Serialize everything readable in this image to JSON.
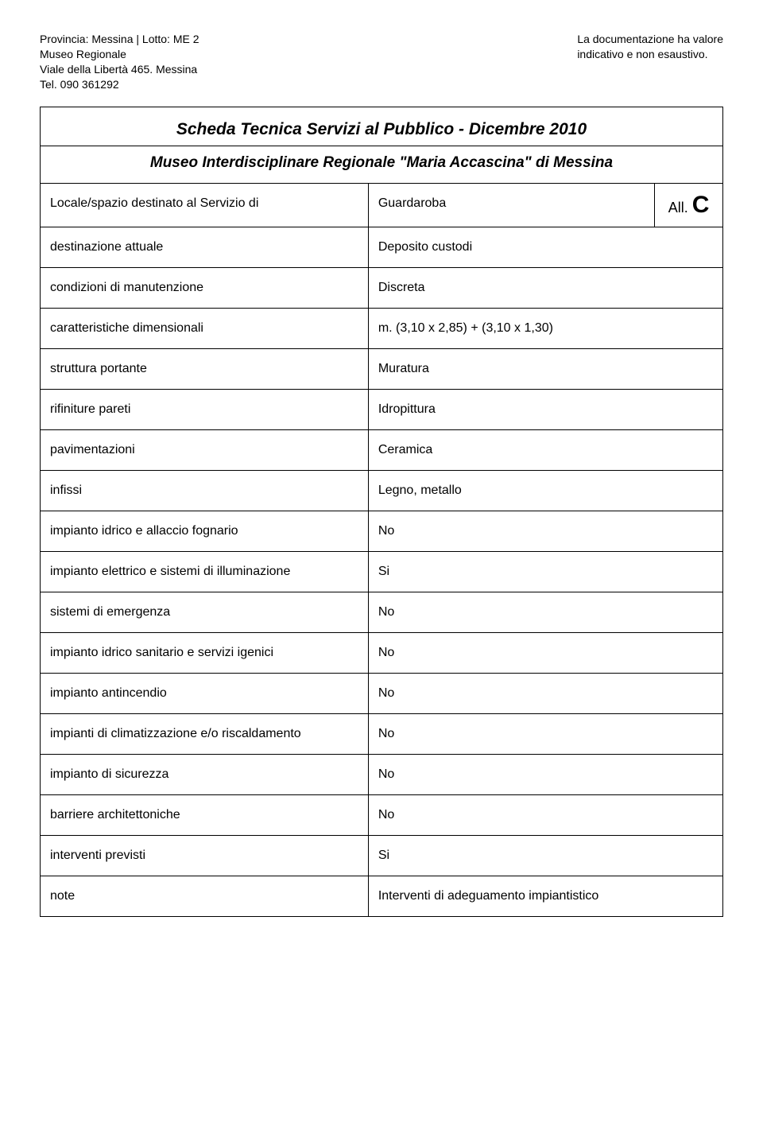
{
  "header": {
    "left_lines": [
      "Provincia: Messina | Lotto: ME 2",
      "Museo Regionale",
      "Viale della Libertà 465. Messina",
      "Tel. 090 361292"
    ],
    "right_lines": [
      "La documentazione ha valore",
      "indicativo e non esaustivo."
    ]
  },
  "title": "Scheda Tecnica Servizi al Pubblico - Dicembre 2010",
  "subtitle": "Museo Interdisciplinare Regionale \"Maria Accascina\" di Messina",
  "allegato": {
    "prefix": "All.",
    "letter": "C"
  },
  "rows": [
    {
      "label": "Locale/spazio destinato al Servizio di",
      "value": "Guardaroba",
      "has_all": true
    },
    {
      "label": "destinazione attuale",
      "value": "Deposito custodi",
      "has_all": false,
      "span_right": true
    },
    {
      "label": "condizioni di manutenzione",
      "value": "Discreta"
    },
    {
      "label": "caratteristiche dimensionali",
      "value": "m. (3,10 x 2,85) + (3,10 x 1,30)"
    },
    {
      "label": "struttura portante",
      "value": "Muratura"
    },
    {
      "label": "rifiniture pareti",
      "value": "Idropittura"
    },
    {
      "label": "pavimentazioni",
      "value": "Ceramica"
    },
    {
      "label": "infissi",
      "value": "Legno, metallo"
    },
    {
      "label": "impianto idrico e allaccio fognario",
      "value": "No"
    },
    {
      "label": "impianto elettrico e sistemi di illuminazione",
      "value": "Si"
    },
    {
      "label": "sistemi di emergenza",
      "value": "No"
    },
    {
      "label": "impianto idrico sanitario e servizi igenici",
      "value": "No"
    },
    {
      "label": "impianto antincendio",
      "value": "No"
    },
    {
      "label": "impianti di climatizzazione e/o riscaldamento",
      "value": "No"
    },
    {
      "label": "impianto di sicurezza",
      "value": "No"
    },
    {
      "label": "barriere architettoniche",
      "value": "No"
    },
    {
      "label": "interventi previsti",
      "value": "Si"
    },
    {
      "label": "note",
      "value": "Interventi di adeguamento impiantistico"
    }
  ]
}
